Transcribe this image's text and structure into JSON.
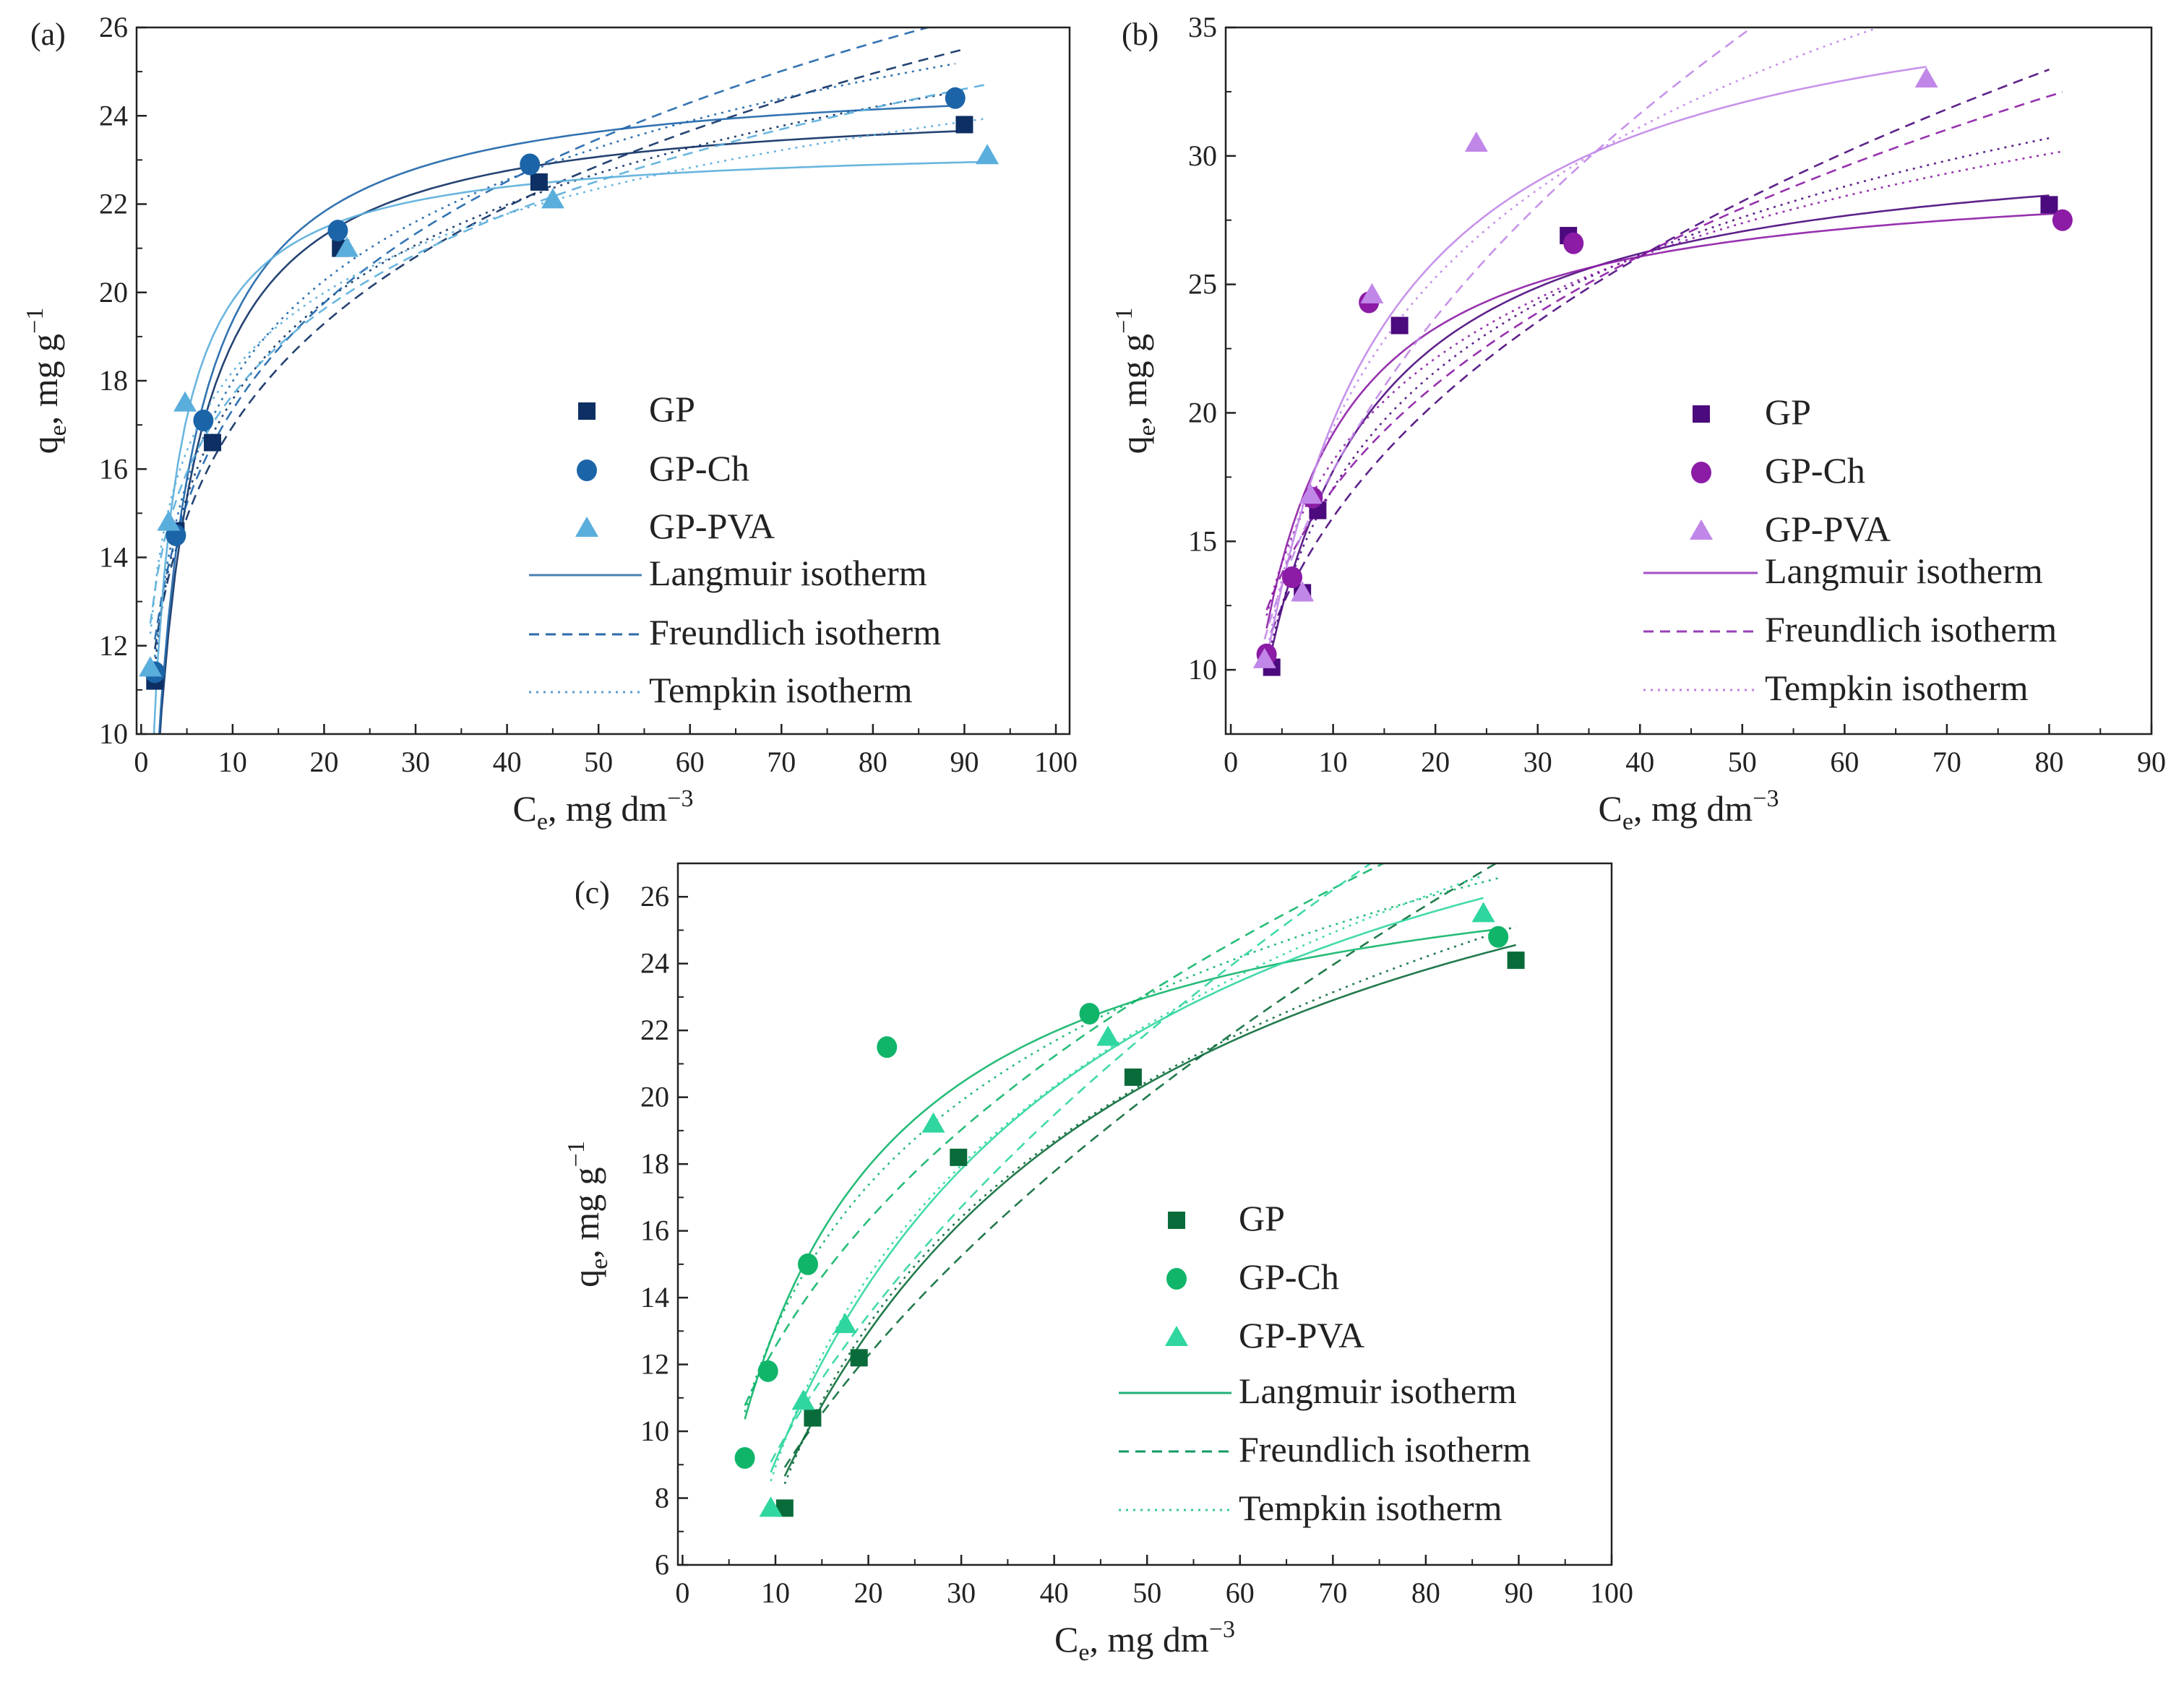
{
  "chart_data": [
    {
      "type": "scatter",
      "panel_label": "(a)",
      "xlabel": {
        "main": "C",
        "sub": "e",
        "rest": ", mg dm",
        "sup": "−3"
      },
      "ylabel": {
        "main": "q",
        "sub": "e",
        "rest": ", mg g",
        "sup": "−1"
      },
      "xlim": [
        -0.5,
        101.5
      ],
      "ylim": [
        10,
        26
      ],
      "xticks": [
        0,
        10,
        20,
        30,
        40,
        50,
        60,
        70,
        80,
        90,
        100
      ],
      "yticks": [
        10,
        12,
        14,
        16,
        18,
        20,
        22,
        24,
        26
      ],
      "series": [
        {
          "name": "GP",
          "marker": "square",
          "color": "#0d2f63",
          "x": [
            1.5,
            3.8,
            7.8,
            21.8,
            43.5,
            90
          ],
          "y": [
            11.2,
            14.6,
            16.6,
            21.0,
            22.5,
            23.8
          ]
        },
        {
          "name": "GP-Ch",
          "marker": "circle",
          "color": "#1c64a8",
          "x": [
            1.5,
            3.8,
            6.8,
            21.5,
            42.5,
            89
          ],
          "y": [
            11.4,
            14.5,
            17.1,
            21.4,
            22.9,
            24.4
          ]
        },
        {
          "name": "GP-PVA",
          "marker": "triangle",
          "color": "#5aaedc",
          "x": [
            1.0,
            3.0,
            4.8,
            22.5,
            45,
            92.5
          ],
          "y": [
            11.5,
            14.8,
            17.5,
            21.0,
            22.1,
            23.1
          ]
        }
      ],
      "fits": [
        {
          "name": "Langmuir isotherm",
          "style": "solid",
          "legend_color": "#4a7fb0"
        },
        {
          "name": "Freundlich isotherm",
          "style": "dashed",
          "legend_color": "#2e6aa8"
        },
        {
          "name": "Tempkin isotherm",
          "style": "dotted",
          "legend_color": "#5b9cd0"
        }
      ],
      "legend": "center-right"
    },
    {
      "type": "scatter",
      "panel_label": "(b)",
      "xlabel": {
        "main": "C",
        "sub": "e",
        "rest": ", mg dm",
        "sup": "−3"
      },
      "ylabel": {
        "main": "q",
        "sub": "e",
        "rest": ", mg g",
        "sup": "−1"
      },
      "xlim": [
        -0.5,
        90
      ],
      "ylim": [
        7.5,
        35
      ],
      "xticks": [
        0,
        10,
        20,
        30,
        40,
        50,
        60,
        70,
        80,
        90
      ],
      "yticks": [
        10,
        15,
        20,
        25,
        30,
        35
      ],
      "series": [
        {
          "name": "GP",
          "marker": "square",
          "color": "#4b0a7d",
          "x": [
            4.0,
            7.0,
            8.5,
            16.5,
            33,
            80
          ],
          "y": [
            10.1,
            13.0,
            16.2,
            23.4,
            26.9,
            28.1
          ]
        },
        {
          "name": "GP-Ch",
          "marker": "circle",
          "color": "#8c1ca5",
          "x": [
            3.5,
            6.0,
            8.0,
            13.5,
            33.5,
            81.3
          ],
          "y": [
            10.6,
            13.6,
            16.7,
            24.3,
            26.6,
            27.5
          ]
        },
        {
          "name": "GP-PVA",
          "marker": "triangle",
          "color": "#c187e8",
          "x": [
            3.3,
            7.0,
            7.8,
            13.8,
            24,
            68
          ],
          "y": [
            10.4,
            13.0,
            16.8,
            24.6,
            30.5,
            33.0
          ]
        }
      ],
      "fits": [
        {
          "name": "Langmuir isotherm",
          "style": "solid",
          "legend_color": "#a34fc4"
        },
        {
          "name": "Freundlich isotherm",
          "style": "dashed",
          "legend_color": "#9a3fb8"
        },
        {
          "name": "Tempkin isotherm",
          "style": "dotted",
          "legend_color": "#c27fe0"
        }
      ],
      "legend": "center-right"
    },
    {
      "type": "scatter",
      "panel_label": "(c)",
      "xlabel": {
        "main": "C",
        "sub": "e",
        "rest": ", mg dm",
        "sup": "−3"
      },
      "ylabel": {
        "main": "q",
        "sub": "e",
        "rest": ", mg g",
        "sup": "−1"
      },
      "xlim": [
        -0.5,
        100
      ],
      "ylim": [
        6,
        27
      ],
      "xticks": [
        0,
        10,
        20,
        30,
        40,
        50,
        60,
        70,
        80,
        90,
        100
      ],
      "yticks": [
        6,
        8,
        10,
        12,
        14,
        16,
        18,
        20,
        22,
        24,
        26
      ],
      "series": [
        {
          "name": "GP",
          "marker": "square",
          "color": "#0a6b3a",
          "x": [
            11,
            14,
            19,
            29.7,
            48.5,
            89.7
          ],
          "y": [
            7.7,
            10.4,
            12.2,
            18.2,
            20.6,
            24.1
          ]
        },
        {
          "name": "GP-Ch",
          "marker": "circle",
          "color": "#10b56a",
          "x": [
            6.7,
            9.2,
            13.5,
            22,
            43.8,
            87.8
          ],
          "y": [
            9.2,
            11.8,
            15.0,
            21.5,
            22.5,
            24.8
          ]
        },
        {
          "name": "GP-PVA",
          "marker": "triangle",
          "color": "#2fd6a0",
          "x": [
            9.5,
            13,
            17.5,
            27,
            45.8,
            86.2
          ],
          "y": [
            7.7,
            10.9,
            13.2,
            19.2,
            21.8,
            25.5
          ]
        }
      ],
      "fits": [
        {
          "name": "Langmuir isotherm",
          "style": "solid",
          "legend_color": "#1fb07a"
        },
        {
          "name": "Freundlich isotherm",
          "style": "dashed",
          "legend_color": "#139a63"
        },
        {
          "name": "Tempkin isotherm",
          "style": "dotted",
          "legend_color": "#39c992"
        }
      ],
      "legend": "center-right"
    }
  ]
}
